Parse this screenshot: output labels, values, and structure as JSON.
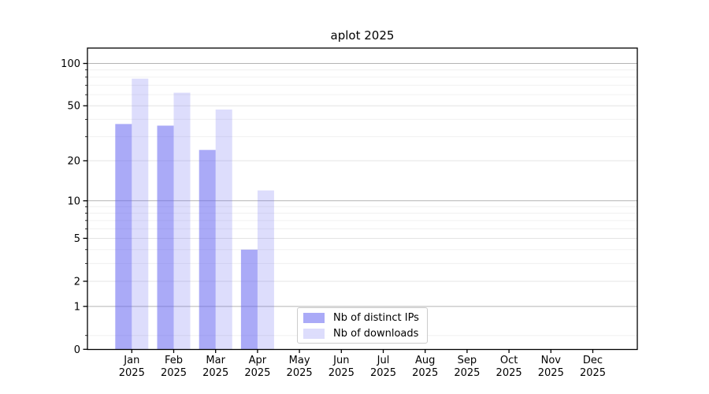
{
  "chart_data": {
    "type": "bar",
    "title": "aplot 2025",
    "categories": [
      "Jan",
      "Feb",
      "Mar",
      "Apr",
      "May",
      "Jun",
      "Jul",
      "Aug",
      "Sep",
      "Oct",
      "Nov",
      "Dec"
    ],
    "category_year": "2025",
    "series": [
      {
        "name": "Nb of distinct IPs",
        "values": [
          37,
          36,
          24,
          4,
          0,
          0,
          0,
          0,
          0,
          0,
          0,
          0
        ],
        "color": "rgba(100,100,240,0.55)"
      },
      {
        "name": "Nb of downloads",
        "values": [
          78,
          62,
          47,
          12,
          0,
          0,
          0,
          0,
          0,
          0,
          0,
          0
        ],
        "color": "rgba(100,100,240,0.22)"
      }
    ],
    "yscale": "log1p",
    "ylim": [
      0,
      120
    ],
    "yticks": [
      0,
      1,
      2,
      5,
      10,
      20,
      50,
      100
    ],
    "ytick_labels": [
      "0",
      "1",
      "2",
      "5",
      "10",
      "20",
      "50",
      "100"
    ],
    "minor_gridlines": [
      0.25,
      3,
      4,
      6,
      7,
      8,
      9,
      30,
      40,
      60,
      70,
      80,
      90
    ],
    "grid": true,
    "legend_position": "lower-center-inside",
    "colors": {
      "grid_major": "#b4b4b4",
      "grid_mid": "#e4e4e4",
      "grid_minor": "#f0f0f0",
      "axis": "#000000",
      "text": "#000000"
    }
  }
}
